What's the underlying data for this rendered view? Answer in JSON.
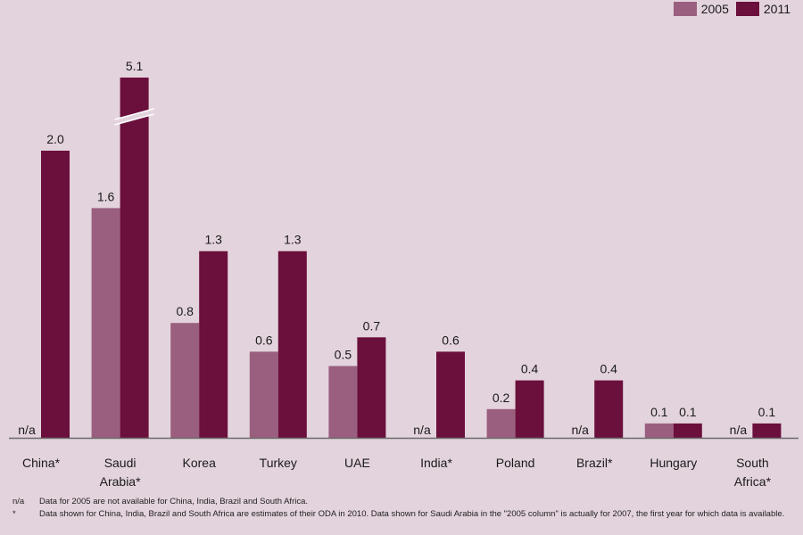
{
  "chart_data": {
    "type": "bar",
    "categories": [
      "China*",
      "Saudi\nArabia*",
      "Korea",
      "Turkey",
      "UAE",
      "India*",
      "Poland",
      "Brazil*",
      "Hungary",
      "South\nAfrica*"
    ],
    "series": [
      {
        "name": "2005",
        "values": [
          null,
          1.6,
          0.8,
          0.6,
          0.5,
          null,
          0.2,
          null,
          0.1,
          null
        ],
        "labels": [
          "n/a",
          "1.6",
          "0.8",
          "0.6",
          "0.5",
          "n/a",
          "0.2",
          "n/a",
          "0.1",
          "n/a"
        ]
      },
      {
        "name": "2011",
        "values": [
          2.0,
          5.1,
          1.3,
          1.3,
          0.7,
          0.6,
          0.4,
          0.4,
          0.1,
          0.1
        ],
        "labels": [
          "2.0",
          "5.1",
          "1.3",
          "1.3",
          "0.7",
          "0.6",
          "0.4",
          "0.4",
          "0.1",
          "0.1"
        ]
      }
    ],
    "axis_break": {
      "category_index": 1,
      "series_index": 1
    },
    "colors": {
      "2005": "#9a5f7e",
      "2011": "#6b0f3c"
    },
    "legend_position": "top-right",
    "grid": false
  },
  "footnotes": [
    {
      "mark": "n/a",
      "text": "Data for 2005 are not available for China, India, Brazil and South Africa."
    },
    {
      "mark": "*",
      "text": "Data shown for China, India, Brazil  and South Africa are estimates of their ODA in 2010. Data shown for Saudi Arabia in the \"2005 column\" is actually for 2007, the first year for which data is available."
    }
  ]
}
